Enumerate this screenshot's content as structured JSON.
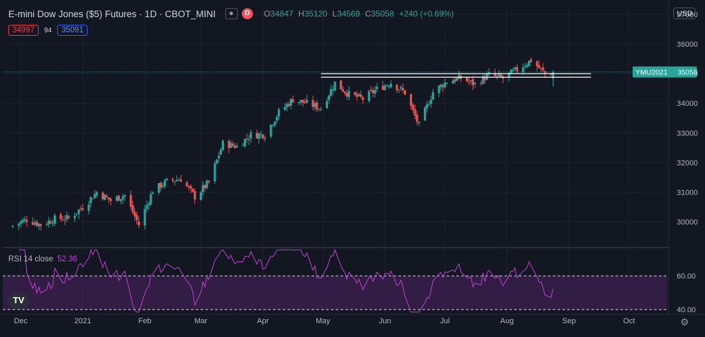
{
  "header": {
    "title": "E-mini Dow Jones ($5) Futures · 1D · CBOT_MINI",
    "badge": "D",
    "ohlc": {
      "open_key": "O",
      "open": "34847",
      "high_key": "H",
      "high": "35120",
      "low_key": "L",
      "low": "34569",
      "close_key": "C",
      "close": "35058",
      "change": "+240 (+0.69%)"
    },
    "bid": "34997",
    "spread": "94",
    "ask": "35091"
  },
  "currency": "USD",
  "price_label": {
    "symbol": "YMU2021",
    "value": "35058"
  },
  "rsi": {
    "label": "RSI 14 close",
    "value": "52.36",
    "upper": "60.00",
    "lower": "40.00"
  },
  "logo_text": "TV",
  "colors": {
    "background": "#131722",
    "grid": "#1e222d",
    "up": "#26a69a",
    "down": "#ef5350",
    "rsi_line": "#c63fd6",
    "rsi_band": "#3b1f4d",
    "level_lines": "#ffffff",
    "axis_text": "#b2b5be"
  },
  "chart_data": [
    {
      "type": "candlestick",
      "ylim": [
        29200,
        37300
      ],
      "y_ticks": [
        30000,
        31000,
        32000,
        33000,
        34000,
        35000,
        36000,
        37000
      ],
      "x_ticks": [
        "Dec",
        "2021",
        "Feb",
        "Mar",
        "Apr",
        "May",
        "Jun",
        "Jul",
        "Aug",
        "Sep",
        "Oct"
      ],
      "last_price": 35058,
      "horizontal_levels": [
        35000,
        34880
      ],
      "series_weekly_closes": [
        [
          "2020-11-27",
          29870
        ],
        [
          "2020-12-04",
          30080
        ],
        [
          "2020-12-11",
          29900
        ],
        [
          "2020-12-18",
          30100
        ],
        [
          "2020-12-25",
          30120
        ],
        [
          "2021-01-01",
          30500
        ],
        [
          "2021-01-08",
          31000
        ],
        [
          "2021-01-15",
          30720
        ],
        [
          "2021-01-22",
          30900
        ],
        [
          "2021-01-29",
          29900
        ],
        [
          "2021-02-05",
          31060
        ],
        [
          "2021-02-12",
          31360
        ],
        [
          "2021-02-19",
          31450
        ],
        [
          "2021-02-26",
          30850
        ],
        [
          "2021-03-05",
          31330
        ],
        [
          "2021-03-12",
          32640
        ],
        [
          "2021-03-19",
          32550
        ],
        [
          "2021-03-26",
          32930
        ],
        [
          "2021-04-02",
          32950
        ],
        [
          "2021-04-09",
          33700
        ],
        [
          "2021-04-16",
          34130
        ],
        [
          "2021-04-23",
          34000
        ],
        [
          "2021-04-30",
          33830
        ],
        [
          "2021-05-07",
          34690
        ],
        [
          "2021-05-14",
          34300
        ],
        [
          "2021-05-21",
          34150
        ],
        [
          "2021-05-28",
          34480
        ],
        [
          "2021-06-04",
          34700
        ],
        [
          "2021-06-11",
          34360
        ],
        [
          "2021-06-18",
          33250
        ],
        [
          "2021-06-25",
          34380
        ],
        [
          "2021-07-02",
          34740
        ],
        [
          "2021-07-09",
          34850
        ],
        [
          "2021-07-16",
          34640
        ],
        [
          "2021-07-23",
          34960
        ],
        [
          "2021-07-30",
          34840
        ],
        [
          "2021-08-06",
          35140
        ],
        [
          "2021-08-13",
          35450
        ],
        [
          "2021-08-20",
          35000
        ],
        [
          "2021-08-24",
          35058
        ]
      ]
    },
    {
      "type": "line",
      "name": "RSI 14 close",
      "ylim": [
        38,
        76
      ],
      "bands": [
        40,
        60
      ],
      "last_value": 52.36
    }
  ]
}
